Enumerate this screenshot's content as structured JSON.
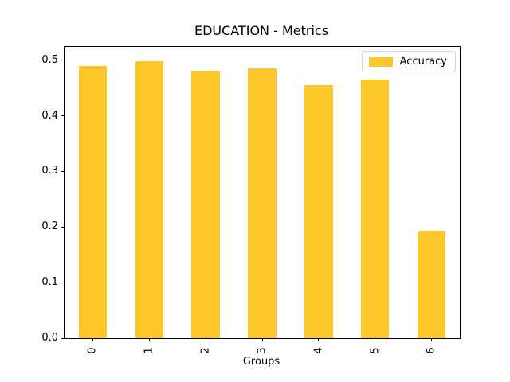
{
  "figure": {
    "background": "#ffffff"
  },
  "chart_data": {
    "type": "bar",
    "title": "EDUCATION - Metrics",
    "xlabel": "Groups",
    "ylabel": "",
    "categories": [
      "0",
      "1",
      "2",
      "3",
      "4",
      "5",
      "6"
    ],
    "series": [
      {
        "name": "Accuracy",
        "color": "#fdc62b",
        "values": [
          0.49,
          0.498,
          0.481,
          0.485,
          0.456,
          0.466,
          0.193
        ]
      }
    ],
    "ylim": [
      0,
      0.524
    ],
    "yticks": [
      0.0,
      0.1,
      0.2,
      0.3,
      0.4,
      0.5
    ],
    "ytick_labels": [
      "0.0",
      "0.1",
      "0.2",
      "0.3",
      "0.4",
      "0.5"
    ],
    "xtick_rotation": 90,
    "bar_width_fraction": 0.5,
    "grid": false,
    "legend": {
      "position": "upper right",
      "entries": [
        "Accuracy"
      ]
    }
  }
}
